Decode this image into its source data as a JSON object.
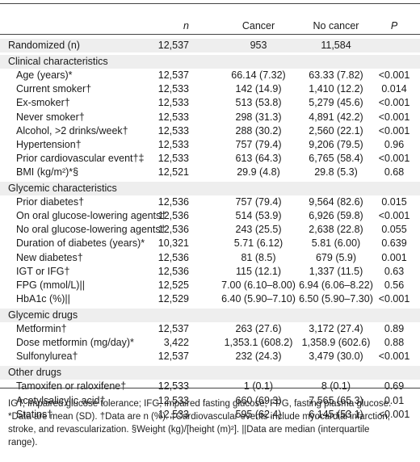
{
  "header": {
    "n": "n",
    "cancer": "Cancer",
    "nocancer": "No cancer",
    "p": "P"
  },
  "rows": [
    {
      "label": "Randomized (n)",
      "n": "12,537",
      "ca": "953",
      "nc": "11,584",
      "p": ""
    },
    {
      "label": "Clinical characteristics",
      "n": "",
      "ca": "",
      "nc": "",
      "p": ""
    },
    {
      "label": "Age (years)*",
      "n": "12,537",
      "ca": "66.14 (7.32)",
      "nc": "63.33 (7.82)",
      "p": "<0.001"
    },
    {
      "label": "Current smoker†",
      "n": "12,533",
      "ca": "142 (14.9)",
      "nc": "1,410 (12.2)",
      "p": "0.014"
    },
    {
      "label": "Ex-smoker†",
      "n": "12,533",
      "ca": "513 (53.8)",
      "nc": "5,279 (45.6)",
      "p": "<0.001"
    },
    {
      "label": "Never smoker†",
      "n": "12,533",
      "ca": "298 (31.3)",
      "nc": "4,891 (42.2)",
      "p": "<0.001"
    },
    {
      "label": "Alcohol, >2 drinks/week†",
      "n": "12,533",
      "ca": "288 (30.2)",
      "nc": "2,560 (22.1)",
      "p": "<0.001"
    },
    {
      "label": "Hypertension†",
      "n": "12,533",
      "ca": "757 (79.4)",
      "nc": "9,206 (79.5)",
      "p": "0.96"
    },
    {
      "label": "Prior cardiovascular event†‡",
      "n": "12,533",
      "ca": "613 (64.3)",
      "nc": "6,765 (58.4)",
      "p": "<0.001"
    },
    {
      "label": "BMI (kg/m²)*§",
      "n": "12,521",
      "ca": "29.9 (4.8)",
      "nc": "29.8 (5.3)",
      "p": "0.68"
    },
    {
      "label": "Glycemic characteristics",
      "n": "",
      "ca": "",
      "nc": "",
      "p": ""
    },
    {
      "label": "Prior diabetes†",
      "n": "12,536",
      "ca": "757 (79.4)",
      "nc": "9,564 (82.6)",
      "p": "0.015"
    },
    {
      "label": "On oral glucose-lowering agents†",
      "n": "12,536",
      "ca": "514 (53.9)",
      "nc": "6,926 (59.8)",
      "p": "<0.001"
    },
    {
      "label": "No oral glucose-lowering agents†",
      "n": "12,536",
      "ca": "243 (25.5)",
      "nc": "2,638 (22.8)",
      "p": "0.055"
    },
    {
      "label": "Duration of diabetes (years)*",
      "n": "10,321",
      "ca": "5.71 (6.12)",
      "nc": "5.81 (6.00)",
      "p": "0.639"
    },
    {
      "label": "New diabetes†",
      "n": "12,536",
      "ca": "81 (8.5)",
      "nc": "679 (5.9)",
      "p": "0.001"
    },
    {
      "label": "IGT or IFG†",
      "n": "12,536",
      "ca": "115 (12.1)",
      "nc": "1,337 (11.5)",
      "p": "0.63"
    },
    {
      "label": "FPG (mmol/L)||",
      "n": "12,525",
      "ca": "7.00 (6.10–8.00)",
      "nc": "6.94 (6.06–8.22)",
      "p": "0.56"
    },
    {
      "label": "HbA1c (%)||",
      "n": "12,529",
      "ca": "6.40 (5.90–7.10)",
      "nc": "6.50 (5.90–7.30)",
      "p": "<0.001"
    },
    {
      "label": "Glycemic drugs",
      "n": "",
      "ca": "",
      "nc": "",
      "p": ""
    },
    {
      "label": "Metformin†",
      "n": "12,537",
      "ca": "263 (27.6)",
      "nc": "3,172 (27.4)",
      "p": "0.89"
    },
    {
      "label": "Dose metformin (mg/day)*",
      "n": "3,422",
      "ca": "1,353.1 (608.2)",
      "nc": "1,358.9 (602.6)",
      "p": "0.88"
    },
    {
      "label": "Sulfonylurea†",
      "n": "12,537",
      "ca": "232 (24.3)",
      "nc": "3,479 (30.0)",
      "p": "<0.001"
    },
    {
      "label": "Other drugs",
      "n": "",
      "ca": "",
      "nc": "",
      "p": ""
    },
    {
      "label": "Tamoxifen or raloxifene†",
      "n": "12,533",
      "ca": "1 (0.1)",
      "nc": "8 (0.1)",
      "p": "0.69"
    },
    {
      "label": "Acetylsalicylic acid†",
      "n": "12,533",
      "ca": "660 (69.3)",
      "nc": "7,565 (65.3)",
      "p": "0.01"
    },
    {
      "label": "Statins†",
      "n": "12,533",
      "ca": "595 (62.4)",
      "nc": "6,145 (53.1)",
      "p": "<0.001"
    }
  ],
  "footnote": "IGT, impaired glucose tolerance; IFG, impaired fasting glucose; FPG, fasting plasma glucose.\n*Data are mean (SD). †Data are n (%). ‡Cardiovascular events include myocardial infarction,\nstroke, and revascularization. §Weight (kg)/[height (m)²]. ||Data are median (interquartile\nrange)."
}
